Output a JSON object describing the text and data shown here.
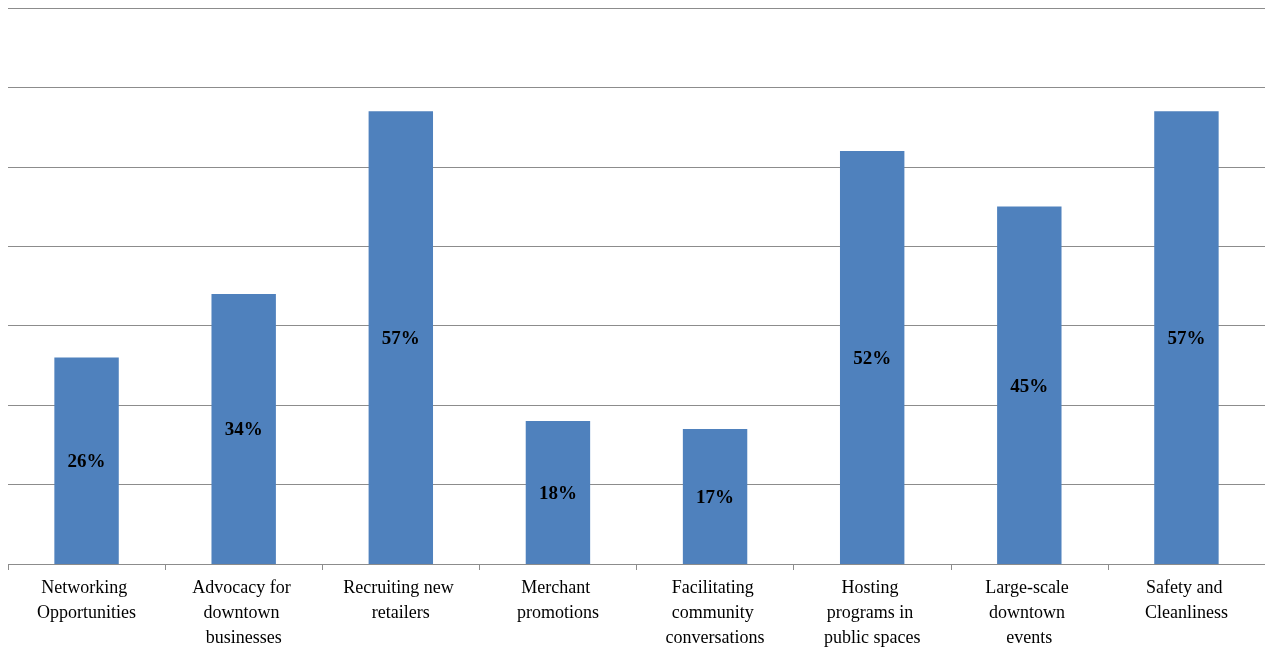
{
  "chart_data": {
    "type": "bar",
    "categories": [
      "Networking Opportunities",
      "Advocacy for downtown businesses",
      "Recruiting new retailers",
      "Merchant promotions",
      "Facilitating community conversations",
      "Hosting programs in public spaces",
      "Large-scale downtown events",
      "Safety and Cleanliness"
    ],
    "values": [
      26,
      34,
      57,
      18,
      17,
      52,
      45,
      57
    ],
    "value_labels": [
      "26%",
      "34%",
      "57%",
      "18%",
      "17%",
      "52%",
      "45%",
      "57%"
    ],
    "color": "#4f81bd",
    "ylim": [
      0,
      70
    ],
    "yticks": [
      {
        "value": 0,
        "label": null
      },
      {
        "value": 10,
        "label": null
      },
      {
        "value": 20,
        "label": null
      },
      {
        "value": 30,
        "label": null
      },
      {
        "value": 40,
        "label": null
      },
      {
        "value": 50,
        "label": null
      },
      {
        "value": 60,
        "label": null
      },
      {
        "value": 70,
        "label": null
      }
    ],
    "tick_labels": "x",
    "grid": "y"
  }
}
